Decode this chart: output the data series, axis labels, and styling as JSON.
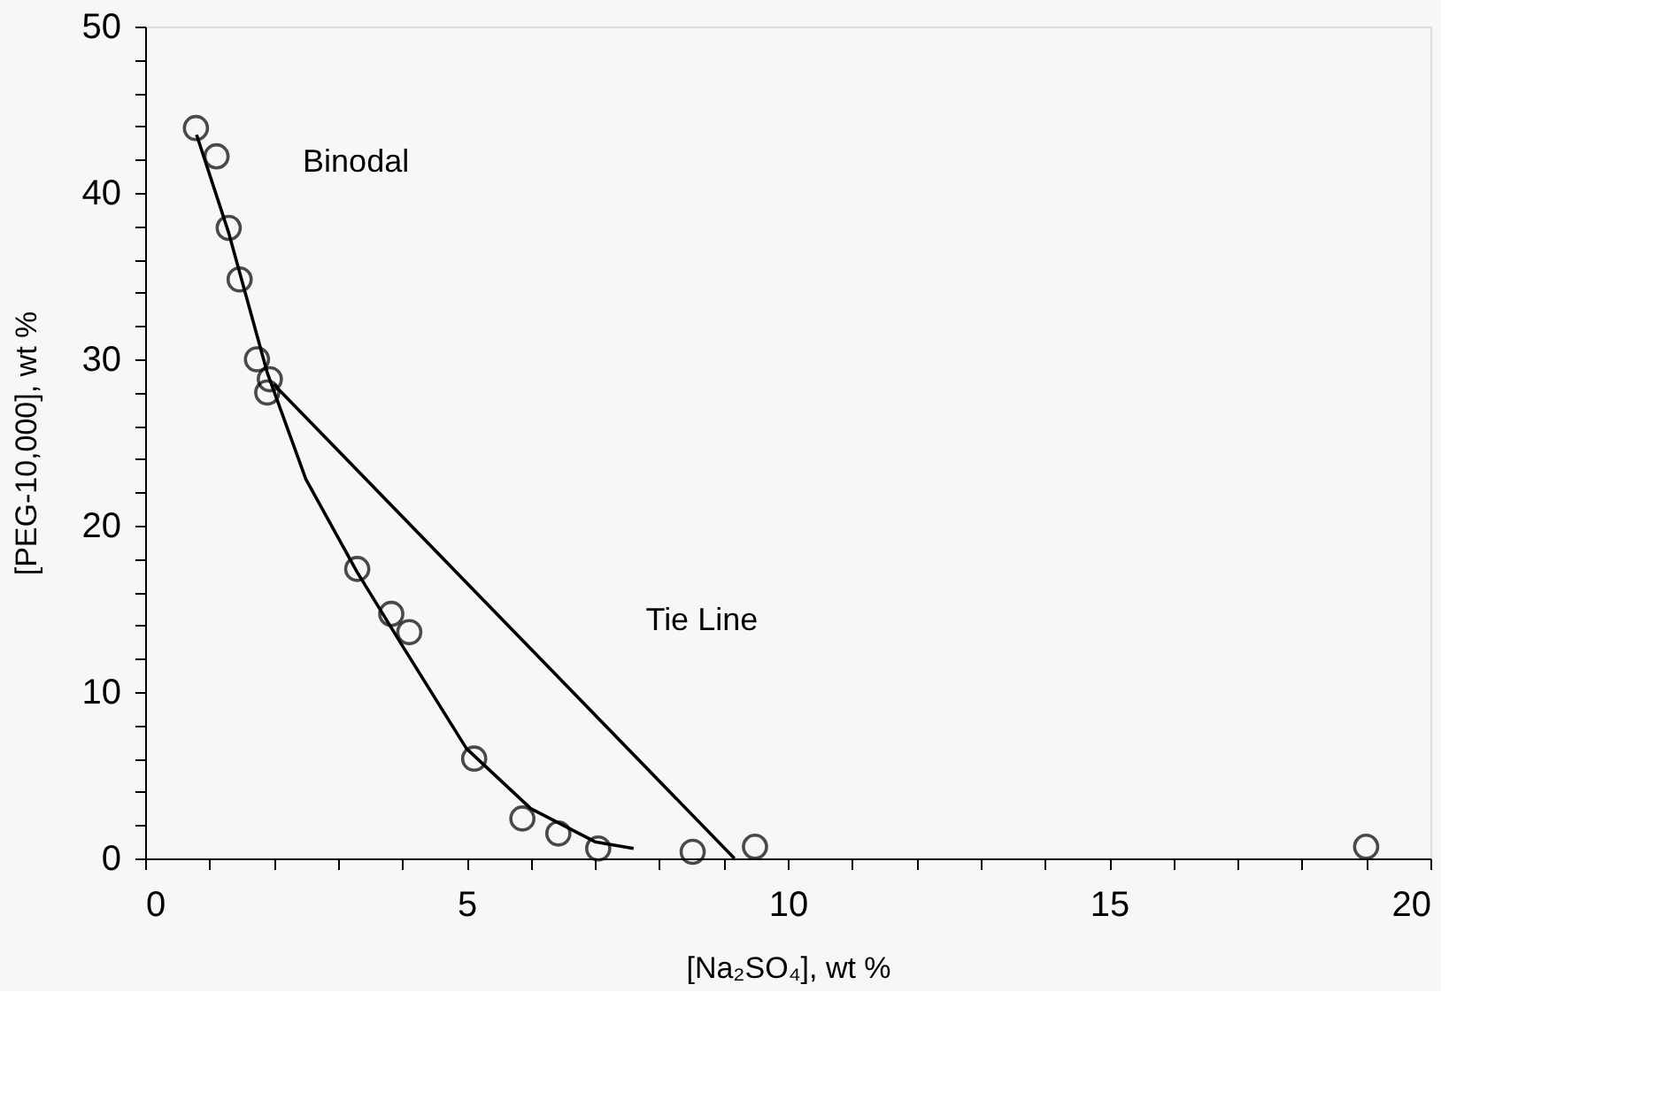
{
  "chart_data": {
    "type": "scatter",
    "xlabel": "[Na₂SO₄], wt %",
    "ylabel": "[PEG-10,000], wt %",
    "xlim": [
      0,
      20
    ],
    "ylim": [
      0,
      50
    ],
    "xticks": [
      0,
      {
        "value": 1,
        "label": null
      },
      {
        "value": 2,
        "label": null
      },
      {
        "value": 3,
        "label": null
      },
      {
        "value": 4,
        "label": null
      },
      5,
      {
        "value": 6,
        "label": null
      },
      {
        "value": 7,
        "label": null
      },
      {
        "value": 8,
        "label": null
      },
      {
        "value": 9,
        "label": null
      },
      10,
      {
        "value": 11,
        "label": null
      },
      {
        "value": 12,
        "label": null
      },
      {
        "value": 13,
        "label": null
      },
      {
        "value": 14,
        "label": null
      },
      15,
      {
        "value": 16,
        "label": null
      },
      {
        "value": 17,
        "label": null
      },
      {
        "value": 18,
        "label": null
      },
      {
        "value": 19,
        "label": null
      },
      20
    ],
    "yticks": [
      0,
      {
        "value": 2,
        "label": null
      },
      {
        "value": 4,
        "label": null
      },
      {
        "value": 6,
        "label": null
      },
      {
        "value": 8,
        "label": null
      },
      10,
      {
        "value": 12,
        "label": null
      },
      {
        "value": 14,
        "label": null
      },
      {
        "value": 16,
        "label": null
      },
      {
        "value": 18,
        "label": null
      },
      20,
      {
        "value": 22,
        "label": null
      },
      {
        "value": 24,
        "label": null
      },
      {
        "value": 26,
        "label": null
      },
      {
        "value": 28,
        "label": null
      },
      30,
      {
        "value": 32,
        "label": null
      },
      {
        "value": 34,
        "label": null
      },
      {
        "value": 36,
        "label": null
      },
      {
        "value": 38,
        "label": null
      },
      40,
      {
        "value": 42,
        "label": null
      },
      {
        "value": 44,
        "label": null
      },
      {
        "value": 46,
        "label": null
      },
      {
        "value": 48,
        "label": null
      },
      50
    ],
    "grid": false,
    "marker": "circle",
    "series": [
      {
        "color": "#000000",
        "x": [
          0.79,
          1.11,
          1.3,
          1.47,
          1.74,
          1.94,
          1.9,
          3.3,
          3.83,
          4.11,
          5.12,
          5.87,
          6.43,
          7.05,
          8.52,
          9.49,
          19.0
        ],
        "values": [
          43.9,
          42.2,
          37.9,
          34.8,
          30.0,
          28.8,
          28.0,
          17.4,
          14.7,
          13.6,
          6.0,
          2.4,
          1.5,
          0.6,
          0.4,
          0.7,
          0.7
        ]
      },
      {
        "type": "line",
        "color": "#000000",
        "marker": "none",
        "line_style": "solid",
        "x": [
          0.8,
          1.3,
          1.9,
          2.5,
          3.3,
          4.0,
          5.0,
          6.0,
          7.0,
          7.6
        ],
        "values": [
          43.5,
          37.6,
          29.2,
          22.8,
          17.2,
          12.8,
          6.6,
          3.0,
          1.0,
          0.6
        ]
      },
      {
        "type": "line",
        "color": "#000000",
        "marker": "none",
        "line_style": "solid",
        "x": [
          2.0,
          9.17
        ],
        "values": [
          28.5,
          0
        ]
      }
    ],
    "annotations": [
      "Binodal",
      "Tie Line"
    ]
  }
}
